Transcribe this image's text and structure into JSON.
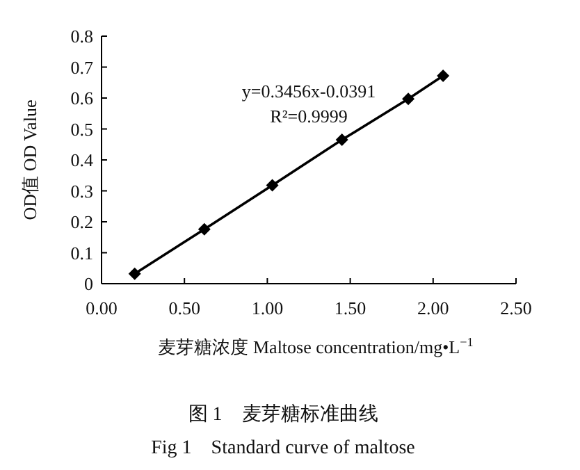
{
  "chart_data": {
    "type": "line",
    "title": "图 1　麦芽糖标准曲线",
    "subtitle": "Fig 1　Standard curve of maltose",
    "xlabel": "麦芽糖浓度 Maltose concentration/mg•L$^{−1}$",
    "ylabel": "OD值 OD Value",
    "annotations": [
      "y=0.3456x-0.0391",
      "R²=0.9999"
    ],
    "x": [
      0.2,
      0.62,
      1.03,
      1.45,
      1.85,
      2.06
    ],
    "series": [
      {
        "color": "#000000",
        "values": [
          0.032,
          0.176,
          0.318,
          0.465,
          0.597,
          0.672
        ]
      }
    ],
    "xlim": [
      0,
      2.5
    ],
    "xticks": [
      {
        "value": 0,
        "label": "0.00"
      },
      {
        "value": 0.5,
        "label": "0.50"
      },
      {
        "value": 1,
        "label": "1.00"
      },
      {
        "value": 1.5,
        "label": "1.50"
      },
      {
        "value": 2,
        "label": "2.00"
      },
      {
        "value": 2.5,
        "label": "2.50"
      }
    ],
    "ylim": [
      0,
      0.8
    ],
    "yticks": [
      0,
      0.1,
      0.2,
      0.3,
      0.4,
      0.5,
      0.6,
      0.7,
      0.8
    ],
    "marker": "diamond",
    "line_style": "solid"
  }
}
